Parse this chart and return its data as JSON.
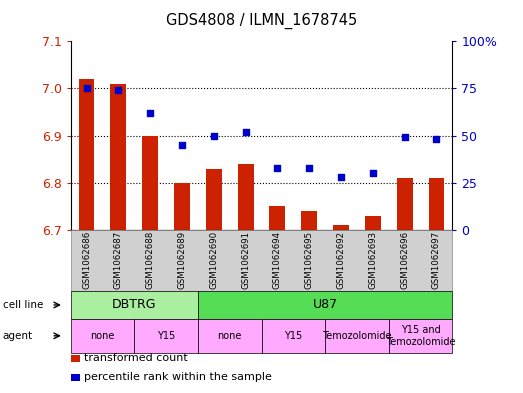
{
  "title": "GDS4808 / ILMN_1678745",
  "samples": [
    "GSM1062686",
    "GSM1062687",
    "GSM1062688",
    "GSM1062689",
    "GSM1062690",
    "GSM1062691",
    "GSM1062694",
    "GSM1062695",
    "GSM1062692",
    "GSM1062693",
    "GSM1062696",
    "GSM1062697"
  ],
  "red_values": [
    7.02,
    7.01,
    6.9,
    6.8,
    6.83,
    6.84,
    6.75,
    6.74,
    6.71,
    6.73,
    6.81,
    6.81
  ],
  "blue_values": [
    75,
    74,
    62,
    45,
    50,
    52,
    33,
    33,
    28,
    30,
    49,
    48
  ],
  "ylim": [
    6.7,
    7.1
  ],
  "y_ticks": [
    6.7,
    6.8,
    6.9,
    7.0,
    7.1
  ],
  "y2_ticks": [
    0,
    25,
    50,
    75,
    100
  ],
  "y2_tick_labels": [
    "0",
    "25",
    "50",
    "75",
    "100%"
  ],
  "cell_line_groups": [
    {
      "label": "DBTRG",
      "start": 0,
      "end": 4,
      "color": "#AAEEA0"
    },
    {
      "label": "U87",
      "start": 4,
      "end": 12,
      "color": "#55DD55"
    }
  ],
  "agent_groups": [
    {
      "label": "none",
      "start": 0,
      "end": 2,
      "color": "#FFAAFF"
    },
    {
      "label": "Y15",
      "start": 2,
      "end": 4,
      "color": "#FFAAFF"
    },
    {
      "label": "none",
      "start": 4,
      "end": 6,
      "color": "#FFAAFF"
    },
    {
      "label": "Y15",
      "start": 6,
      "end": 8,
      "color": "#FFAAFF"
    },
    {
      "label": "Temozolomide",
      "start": 8,
      "end": 10,
      "color": "#FFAAFF"
    },
    {
      "label": "Y15 and\nTemozolomide",
      "start": 10,
      "end": 12,
      "color": "#FFAAFF"
    }
  ],
  "bar_color": "#CC2200",
  "dot_color": "#0000CC",
  "bar_bottom": 6.7,
  "sample_bg_color": "#D0D0D0",
  "legend_items": [
    {
      "label": "transformed count",
      "color": "#CC2200"
    },
    {
      "label": "percentile rank within the sample",
      "color": "#0000CC"
    }
  ]
}
